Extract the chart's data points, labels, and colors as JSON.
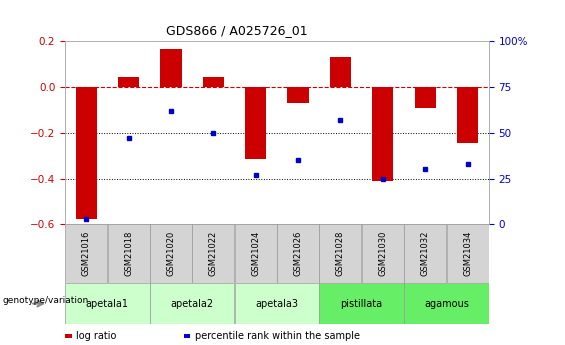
{
  "title": "GDS866 / A025726_01",
  "samples": [
    "GSM21016",
    "GSM21018",
    "GSM21020",
    "GSM21022",
    "GSM21024",
    "GSM21026",
    "GSM21028",
    "GSM21030",
    "GSM21032",
    "GSM21034"
  ],
  "log_ratio": [
    -0.575,
    0.045,
    0.165,
    0.045,
    -0.315,
    -0.07,
    0.13,
    -0.41,
    -0.09,
    -0.245
  ],
  "percentile": [
    3,
    47,
    62,
    50,
    27,
    35,
    57,
    25,
    30,
    33
  ],
  "groups": [
    {
      "label": "apetala1",
      "samples": [
        0,
        1
      ],
      "color": "#ccffcc"
    },
    {
      "label": "apetala2",
      "samples": [
        2,
        3
      ],
      "color": "#ccffcc"
    },
    {
      "label": "apetala3",
      "samples": [
        4,
        5
      ],
      "color": "#ccffcc"
    },
    {
      "label": "pistillata",
      "samples": [
        6,
        7
      ],
      "color": "#66ee66"
    },
    {
      "label": "agamous",
      "samples": [
        8,
        9
      ],
      "color": "#66ee66"
    }
  ],
  "bar_color": "#cc0000",
  "dot_color": "#0000cc",
  "ylim_left": [
    -0.6,
    0.2
  ],
  "ylim_right": [
    0,
    100
  ],
  "yticks_left": [
    -0.6,
    -0.4,
    -0.2,
    0.0,
    0.2
  ],
  "yticks_right": [
    0,
    25,
    50,
    75,
    100
  ],
  "ytick_labels_right": [
    "0",
    "25",
    "50",
    "75",
    "100%"
  ],
  "ref_line": 0.0,
  "dot_lines": [
    -0.2,
    -0.4
  ],
  "bar_width": 0.5,
  "genotype_label": "genotype/variation",
  "legend_red_label": "log ratio",
  "legend_blue_label": "percentile rank within the sample",
  "sample_box_color": "#d4d4d4",
  "sample_box_edge": "#999999",
  "group_box_edge": "#999999"
}
